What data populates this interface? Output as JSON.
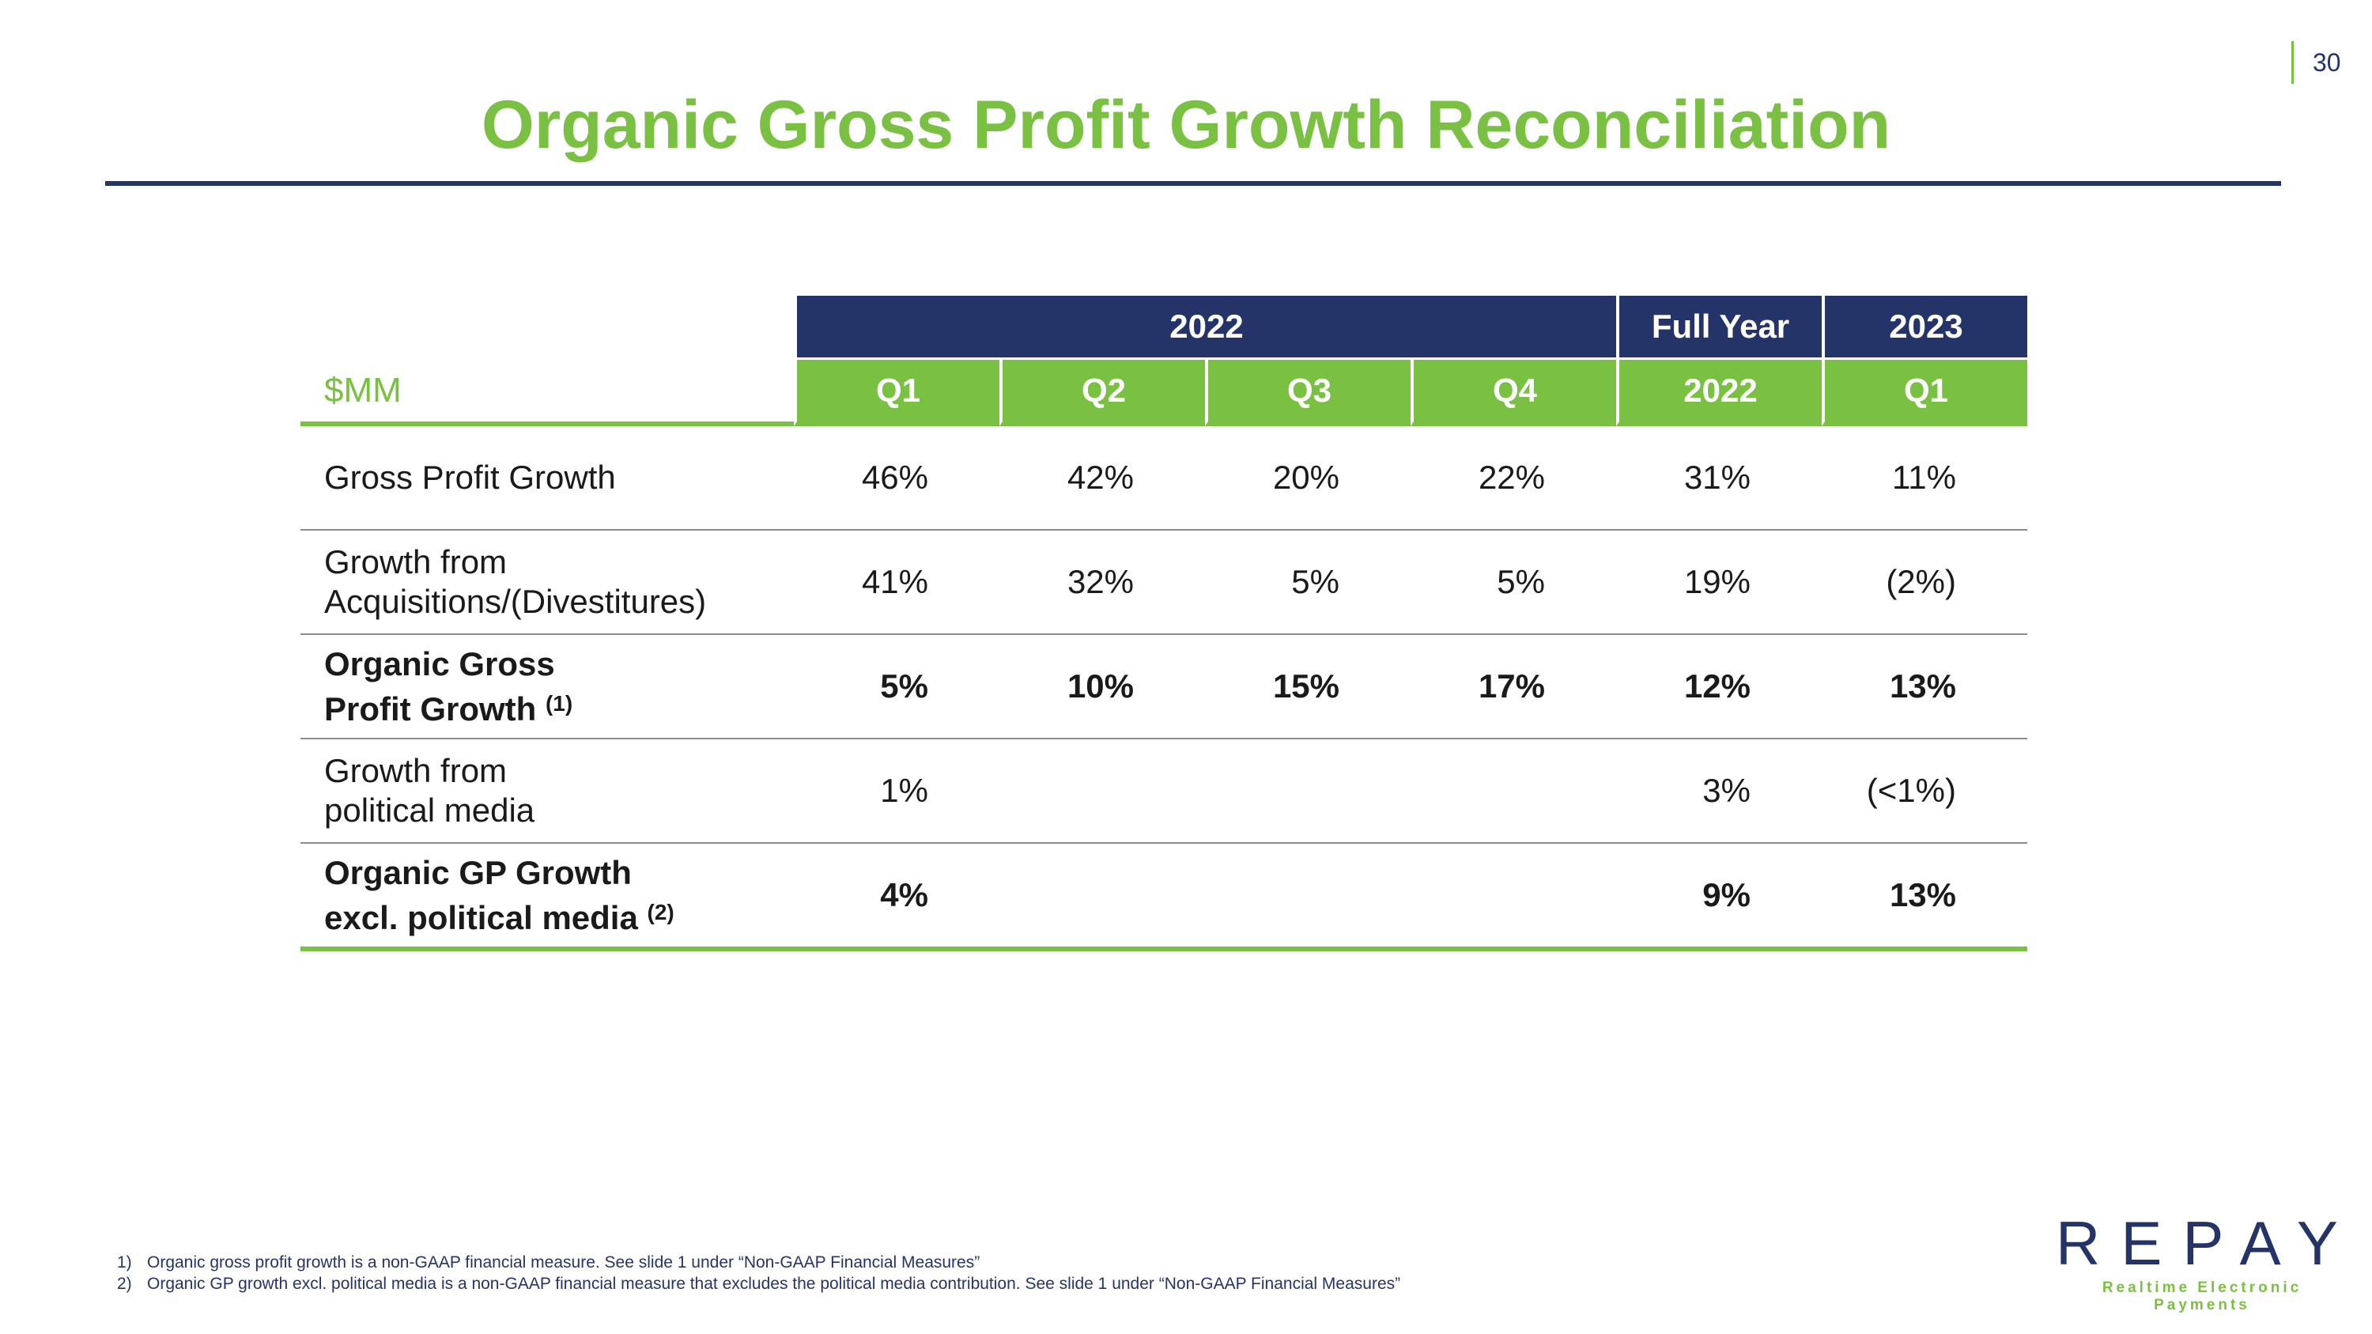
{
  "page_number": "30",
  "title": "Organic Gross Profit Growth Reconciliation",
  "table": {
    "unit_label": "$MM",
    "group_headers": [
      "2022",
      "Full Year",
      "2023"
    ],
    "columns": [
      "Q1",
      "Q2",
      "Q3",
      "Q4",
      "2022",
      "Q1"
    ],
    "rows": [
      {
        "label_line1": "Gross Profit Growth",
        "label_line2": "",
        "footnote": "",
        "values": [
          "46%",
          "42%",
          "20%",
          "22%",
          "31%",
          "11%"
        ]
      },
      {
        "label_line1": "Growth from",
        "label_line2": "Acquisitions/(Divestitures)",
        "footnote": "",
        "values": [
          "41%",
          "32%",
          "5%",
          "5%",
          "19%",
          "(2%)"
        ]
      },
      {
        "label_line1": "Organic Gross",
        "label_line2": "Profit Growth",
        "footnote": "(1)",
        "values": [
          "5%",
          "10%",
          "15%",
          "17%",
          "12%",
          "13%"
        ]
      },
      {
        "label_line1": "Growth from",
        "label_line2": "political media",
        "footnote": "",
        "values": [
          "1%",
          "",
          "",
          "",
          "3%",
          "(<1%)"
        ]
      },
      {
        "label_line1": "Organic GP Growth",
        "label_line2": "excl. political media",
        "footnote": "(2)",
        "values": [
          "4%",
          "",
          "",
          "",
          "9%",
          "13%"
        ]
      }
    ]
  },
  "footnotes": [
    {
      "num": "1)",
      "text": "Organic gross profit growth is a non-GAAP financial measure. See slide 1 under “Non-GAAP Financial Measures”"
    },
    {
      "num": "2)",
      "text": "Organic GP growth excl. political media is a non-GAAP financial measure that excludes the political media contribution. See slide 1 under “Non-GAAP Financial Measures”"
    }
  ],
  "logo": {
    "wordmark": "REPAY",
    "tagline": "Realtime Electronic Payments"
  },
  "colors": {
    "navy": "#243469",
    "green": "#7ac143"
  }
}
